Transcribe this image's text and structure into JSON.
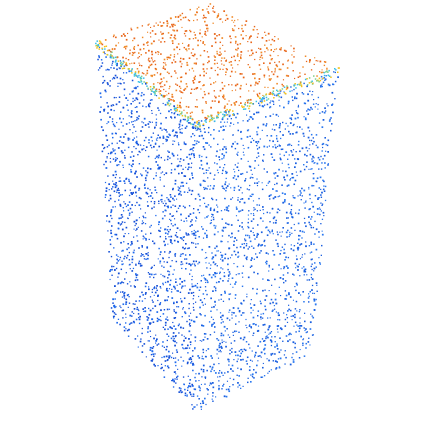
{
  "scene": {
    "subject": "point-cloud-rectangular-prism",
    "background_color": "#ffffff",
    "faces": [
      {
        "name": "top-face",
        "color": "#e8661a",
        "density": 0.011,
        "jitter_color": "#f08a2a"
      },
      {
        "name": "front-face",
        "color": "#1a5fe0",
        "density": 0.0105,
        "jitter_color": "#2a78f0"
      },
      {
        "name": "left-face",
        "color": "#1550d8",
        "density": 0.013,
        "jitter_color": "#1f6aee"
      }
    ],
    "edge_colors": [
      "#f5c21a",
      "#7fd08a",
      "#38c0e8"
    ]
  }
}
